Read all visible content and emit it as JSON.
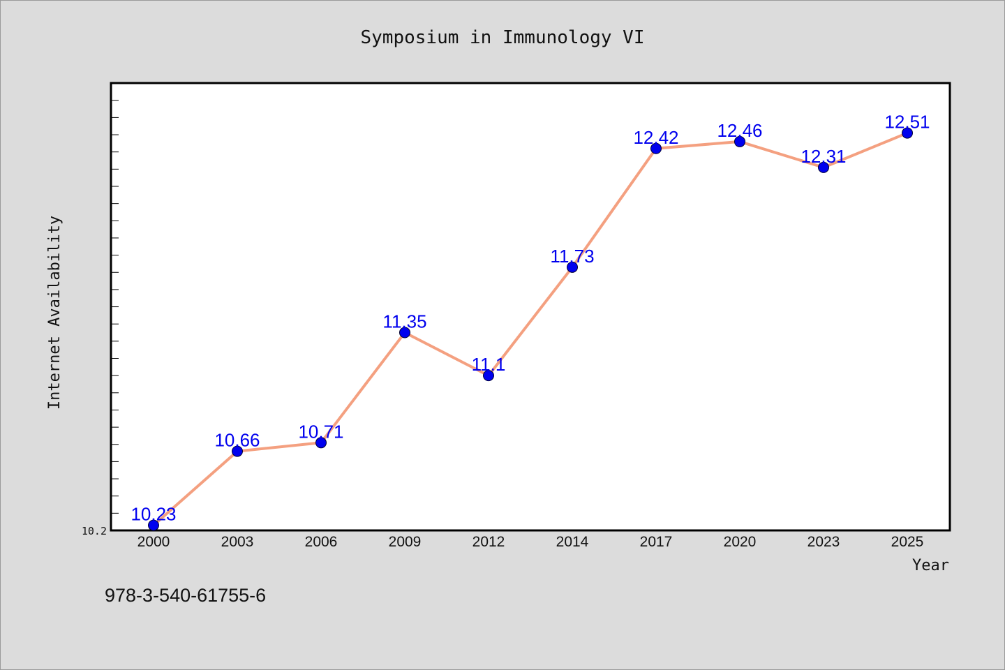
{
  "chart_data": {
    "type": "line",
    "title": "Symposium in Immunology VI",
    "xlabel": "Year",
    "ylabel": "Internet Availability",
    "categories": [
      "2000",
      "2003",
      "2006",
      "2009",
      "2012",
      "2014",
      "2017",
      "2020",
      "2023",
      "2025"
    ],
    "series": [
      {
        "values": [
          10.23,
          10.66,
          10.71,
          11.35,
          11.1,
          11.73,
          12.42,
          12.46,
          12.31,
          12.51
        ],
        "data_labels": [
          "10.23",
          "10.66",
          "10.71",
          "11.35",
          "11.1",
          "11.73",
          "12.42",
          "12.46",
          "12.31",
          "12.51"
        ],
        "line_color": "#f4a080",
        "marker_color": "#0000ee",
        "label_color": "#0000ee"
      }
    ],
    "y_tick_labels": [
      "10.2"
    ],
    "ylim": [
      10.2,
      12.8
    ],
    "grid": false,
    "legend": "none"
  },
  "footer_text": "978-3-540-61755-6",
  "colors": {
    "background": "#dcdcdc",
    "plot_background": "#ffffff",
    "axis": "#000000"
  }
}
